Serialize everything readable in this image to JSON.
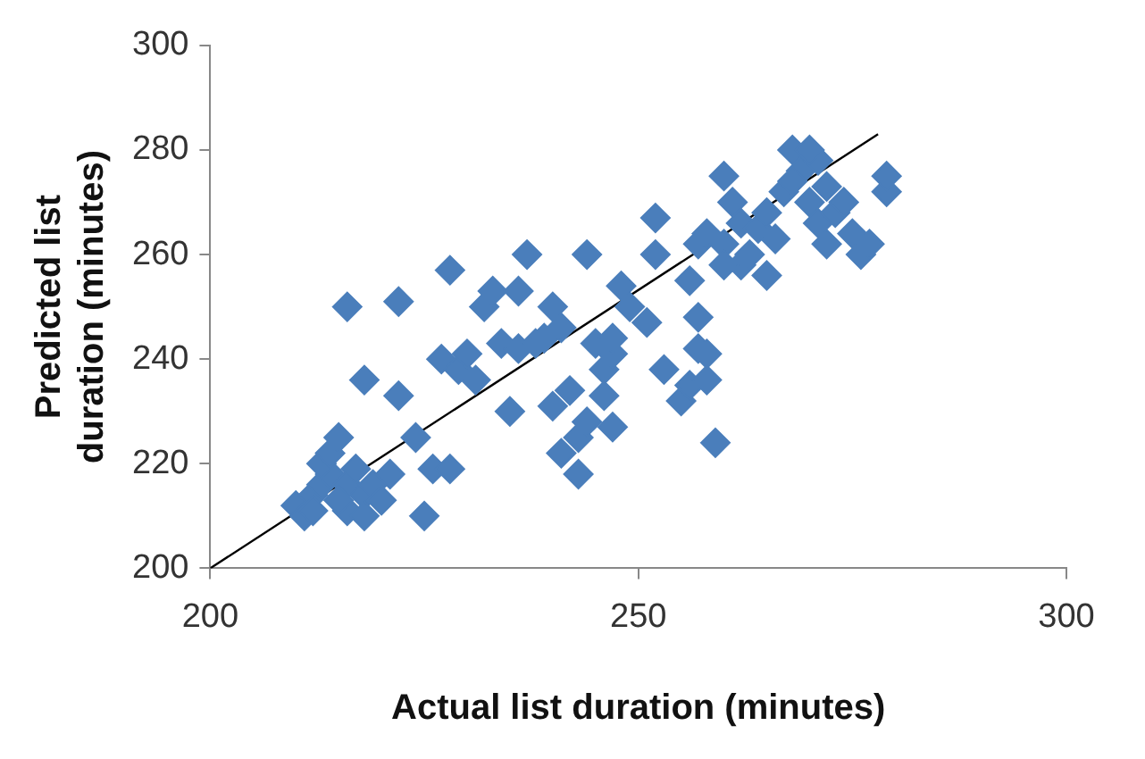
{
  "chart_data": {
    "type": "scatter",
    "xlabel": "Actual list duration (minutes)",
    "ylabel": "Predicted list duration (minutes)",
    "xlim": [
      200,
      300
    ],
    "xticks": [
      200,
      250,
      300
    ],
    "ylim": [
      200,
      300
    ],
    "yticks": [
      200,
      220,
      240,
      260,
      280,
      300
    ],
    "grid": false,
    "legend": false,
    "series": [
      {
        "color": "#4a7ebb",
        "marker": "diamond",
        "x": [
          210,
          211,
          212,
          213,
          214,
          213,
          214,
          215,
          216,
          217,
          218,
          219,
          220,
          216,
          212,
          218,
          221,
          215,
          216,
          222,
          218,
          222,
          224,
          225,
          226,
          228,
          227,
          228,
          229,
          230,
          231,
          232,
          233,
          234,
          235,
          236,
          237,
          238,
          236,
          240,
          241,
          240,
          241,
          242,
          243,
          243,
          244,
          244,
          245,
          246,
          246,
          247,
          247,
          248,
          249,
          251,
          252,
          252,
          253,
          255,
          256,
          256,
          257,
          258,
          258,
          259,
          257,
          258,
          260,
          260,
          261,
          262,
          262,
          263,
          264,
          265,
          266,
          267,
          268,
          269,
          270,
          271,
          271,
          272,
          273,
          272,
          274,
          275,
          276,
          277,
          279,
          279,
          270,
          268,
          265,
          260,
          257,
          247,
          239
        ],
        "values": [
          212,
          210,
          214,
          216,
          218,
          220,
          222,
          225,
          216,
          219,
          214,
          216,
          213,
          211,
          211,
          210,
          218,
          213,
          250,
          251,
          236,
          233,
          225,
          210,
          219,
          219,
          240,
          257,
          238,
          241,
          236,
          250,
          253,
          243,
          230,
          242,
          260,
          243,
          253,
          250,
          246,
          231,
          222,
          234,
          225,
          218,
          228,
          260,
          243,
          238,
          233,
          241,
          227,
          254,
          250,
          247,
          260,
          267,
          238,
          232,
          235,
          255,
          242,
          241,
          236,
          224,
          262,
          264,
          262,
          275,
          270,
          266,
          258,
          260,
          265,
          268,
          263,
          272,
          280,
          276,
          270,
          278,
          266,
          262,
          268,
          273,
          270,
          264,
          260,
          262,
          272,
          275,
          280,
          274,
          256,
          258,
          248,
          244,
          244
        ]
      },
      {
        "type": "line",
        "marker": "none",
        "color": "#000000",
        "x": [
          200,
          278
        ],
        "values": [
          200,
          283
        ]
      }
    ]
  }
}
